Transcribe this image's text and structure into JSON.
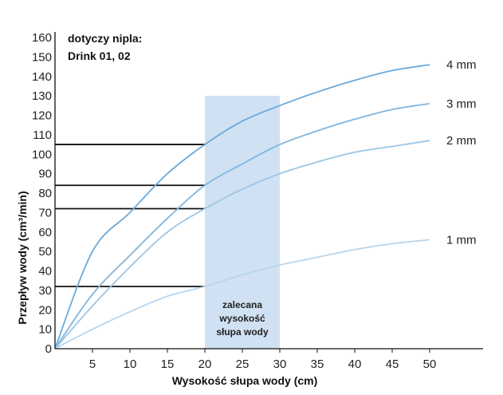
{
  "chart_data": {
    "type": "line",
    "xlabel": "Wysokość słupa wody (cm)",
    "ylabel": "Przepływ wody  (cm³/min)",
    "xlim": [
      0,
      50
    ],
    "ylim": [
      0,
      160
    ],
    "xticks": [
      5,
      10,
      15,
      20,
      25,
      30,
      35,
      40,
      45,
      50
    ],
    "yticks": [
      0,
      10,
      20,
      30,
      40,
      50,
      60,
      70,
      80,
      90,
      100,
      110,
      120,
      130,
      140,
      150,
      160
    ],
    "note_lines": [
      "dotyczy nipla:",
      "Drink 01, 02"
    ],
    "recommended_range": {
      "x_from": 20,
      "x_to": 30,
      "y_top": 130,
      "label_lines": [
        "zalecana",
        "wysokość",
        "słupa wody"
      ]
    },
    "series": [
      {
        "name": "4 mm",
        "color": "#6aaad8",
        "x": [
          0,
          5,
          10,
          15,
          20,
          25,
          30,
          35,
          40,
          45,
          50
        ],
        "values": [
          0,
          50,
          70,
          90,
          105,
          117,
          125,
          132,
          138,
          143,
          146
        ]
      },
      {
        "name": "3 mm",
        "color": "#7fb5de",
        "x": [
          0,
          5,
          10,
          15,
          20,
          25,
          30,
          35,
          40,
          45,
          50
        ],
        "values": [
          0,
          28,
          48,
          67,
          84,
          95,
          105,
          112,
          118,
          123,
          126
        ]
      },
      {
        "name": "2 mm",
        "color": "#9cc6e6",
        "x": [
          0,
          5,
          10,
          15,
          20,
          25,
          30,
          35,
          40,
          45,
          50
        ],
        "values": [
          0,
          22,
          42,
          60,
          72,
          82,
          90,
          96,
          101,
          104,
          107
        ]
      },
      {
        "name": "1 mm",
        "color": "#b7d6ee",
        "x": [
          0,
          5,
          10,
          15,
          20,
          25,
          30,
          35,
          40,
          45,
          50
        ],
        "values": [
          0,
          10,
          19,
          27,
          32,
          38,
          43,
          47,
          51,
          54,
          56
        ]
      }
    ],
    "reference_lines": [
      {
        "y": 105,
        "x_to": 20
      },
      {
        "y": 84,
        "x_to": 20
      },
      {
        "y": 72,
        "x_to": 20
      },
      {
        "y": 32,
        "x_to": 20
      }
    ]
  }
}
